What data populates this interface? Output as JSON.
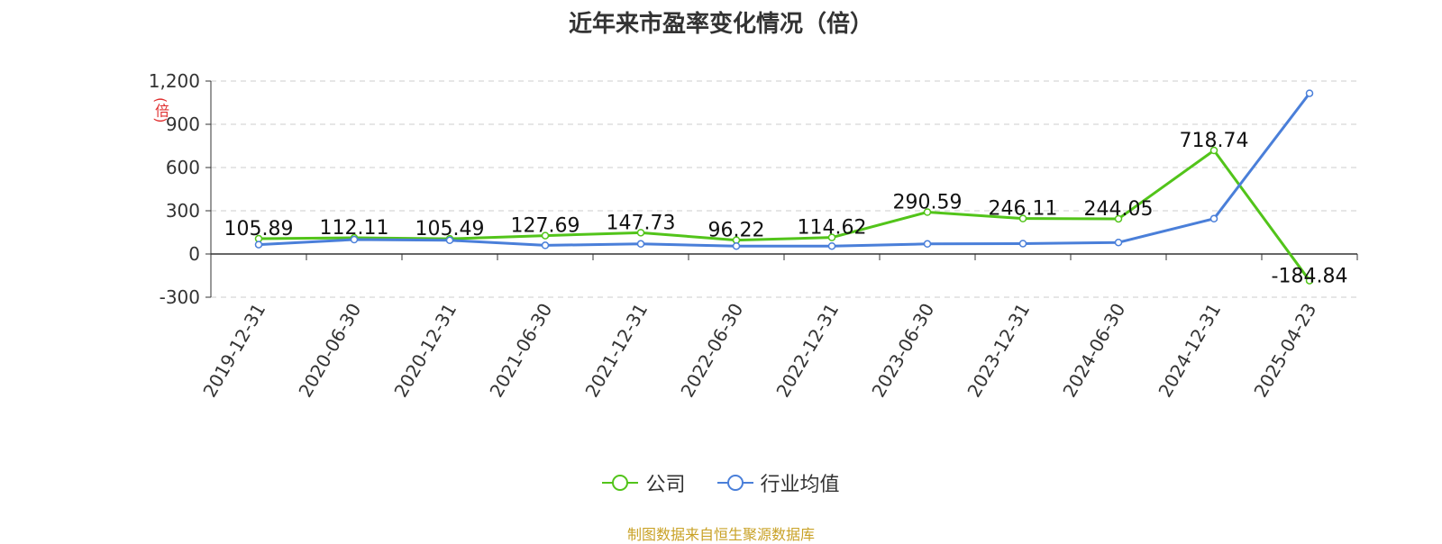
{
  "chart_data": {
    "type": "line",
    "title": "近年来市盈率变化情况（倍）",
    "ylabel": "(倍)",
    "categories": [
      "2019-12-31",
      "2020-06-30",
      "2020-12-31",
      "2021-06-30",
      "2021-12-31",
      "2022-06-30",
      "2022-12-31",
      "2023-06-30",
      "2023-12-31",
      "2024-06-30",
      "2024-12-31",
      "2025-04-23"
    ],
    "ylim": [
      -300,
      1200
    ],
    "yticks": [
      "1,200",
      "900",
      "600",
      "300",
      "0",
      "-300"
    ],
    "ytick_values": [
      1200,
      900,
      600,
      300,
      0,
      -300
    ],
    "grid": true,
    "legend_position": "bottom",
    "series": [
      {
        "name": "公司",
        "color": "#52c41a",
        "values": [
          105.89,
          112.11,
          105.49,
          127.69,
          147.73,
          96.22,
          114.62,
          290.59,
          246.11,
          244.05,
          718.74,
          -184.84
        ],
        "labels": [
          "105.89",
          "112.11",
          "105.49",
          "127.69",
          "147.73",
          "96.22",
          "114.62",
          "290.59",
          "246.11",
          "244.05",
          "718.74",
          "-184.84"
        ]
      },
      {
        "name": "行业均值",
        "color": "#4a7fd9",
        "values": [
          65,
          100,
          95,
          60,
          70,
          55,
          55,
          70,
          72,
          80,
          245,
          1115
        ]
      }
    ]
  },
  "source": "制图数据来自恒生聚源数据库"
}
